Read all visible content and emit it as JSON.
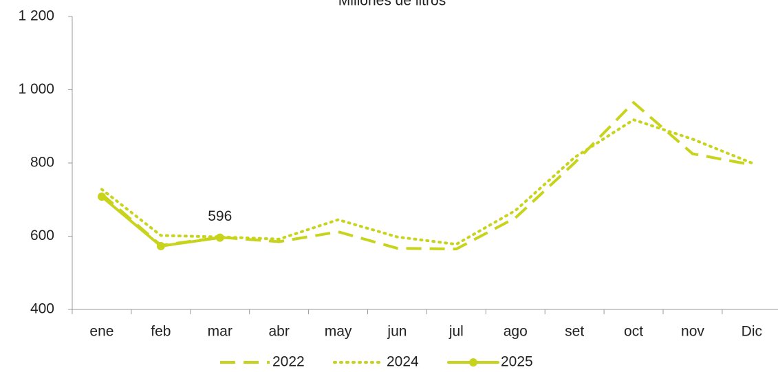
{
  "chart_data": {
    "type": "line",
    "title": "Millones de litros",
    "categories": [
      "ene",
      "feb",
      "mar",
      "abr",
      "may",
      "jun",
      "jul",
      "ago",
      "set",
      "oct",
      "nov",
      "Dic"
    ],
    "series": [
      {
        "name": "2022",
        "color": "#c8d31b",
        "style": "dashed",
        "markers": false,
        "values": [
          715,
          575,
          597,
          585,
          612,
          567,
          565,
          650,
          800,
          965,
          825,
          795
        ]
      },
      {
        "name": "2024",
        "color": "#c8d31b",
        "style": "dotted",
        "markers": false,
        "values": [
          728,
          602,
          598,
          592,
          645,
          598,
          578,
          670,
          815,
          918,
          865,
          800
        ]
      },
      {
        "name": "2025",
        "color": "#c8d31b",
        "style": "solid",
        "markers": true,
        "label_last": true,
        "values": [
          708,
          573,
          596,
          null,
          null,
          null,
          null,
          null,
          null,
          null,
          null,
          null
        ]
      }
    ],
    "ylim": [
      400,
      1200
    ],
    "yticks": [
      400,
      600,
      800,
      {
        "value": 1000,
        "label": "1 000"
      },
      {
        "value": 1200,
        "label": "1 200"
      }
    ],
    "grid": false,
    "legend": "bottom"
  }
}
